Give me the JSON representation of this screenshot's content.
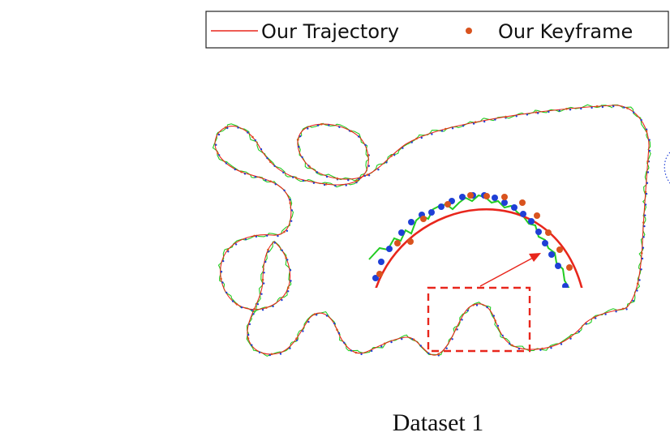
{
  "chart_data": {
    "type": "line",
    "title": "",
    "xlabel": "",
    "ylabel": "",
    "caption": "Dataset 1",
    "legend": {
      "placement": "top-right",
      "entries": [
        {
          "label": "Our Trajectory",
          "marker": "line",
          "color": "#e8261c"
        },
        {
          "label": "Our Keyframe",
          "marker": "dot",
          "color": "#d9531e"
        }
      ]
    },
    "series": [
      {
        "label": "Our Trajectory",
        "color": "#e8261c",
        "style": "solid line"
      },
      {
        "label": "",
        "color": "#22cc22",
        "style": "noisy line"
      },
      {
        "label": "Our Keyframe",
        "color": "#d9531e",
        "style": "dots"
      },
      {
        "label": "",
        "color": "#1f3fd6",
        "style": "dots"
      }
    ],
    "annotations": {
      "zoom_box": {
        "color": "#e8261c",
        "style": "dashed rectangle"
      },
      "inset": "magnified view of the boxed section"
    },
    "grid": false,
    "axes_visible": false
  }
}
